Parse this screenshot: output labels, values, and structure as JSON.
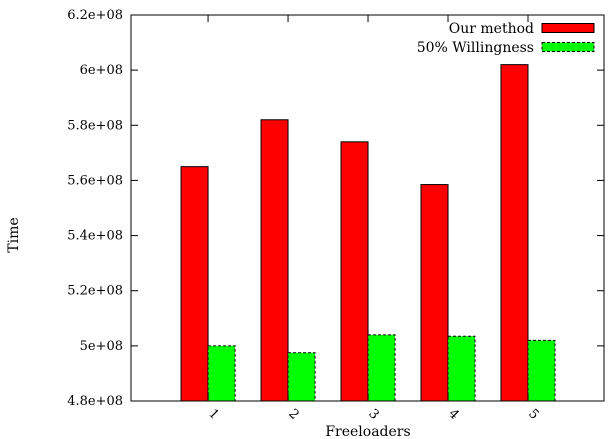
{
  "chart_data": {
    "type": "bar",
    "xlabel": "Freeloaders",
    "ylabel": "Time",
    "categories": [
      "1",
      "2",
      "3",
      "4",
      "5"
    ],
    "ylim": [
      480000000,
      620000000
    ],
    "yticks": [
      {
        "value": 480000000,
        "label": "4.8e+08"
      },
      {
        "value": 500000000,
        "label": "5e+08"
      },
      {
        "value": 520000000,
        "label": "5.2e+08"
      },
      {
        "value": 540000000,
        "label": "5.4e+08"
      },
      {
        "value": 560000000,
        "label": "5.6e+08"
      },
      {
        "value": 580000000,
        "label": "5.8e+08"
      },
      {
        "value": 600000000,
        "label": "6e+08"
      },
      {
        "value": 620000000,
        "label": "6.2e+08"
      }
    ],
    "series": [
      {
        "name": "Our method",
        "color": "#ff0000",
        "dashed": false,
        "values": [
          565000000,
          582000000,
          574000000,
          558500000,
          602000000
        ]
      },
      {
        "name": "50% Willingness",
        "color": "#00ff00",
        "dashed": true,
        "values": [
          500000000,
          497500000,
          504000000,
          503500000,
          502000000
        ]
      }
    ],
    "grid": false,
    "legend_position": "top-right"
  }
}
